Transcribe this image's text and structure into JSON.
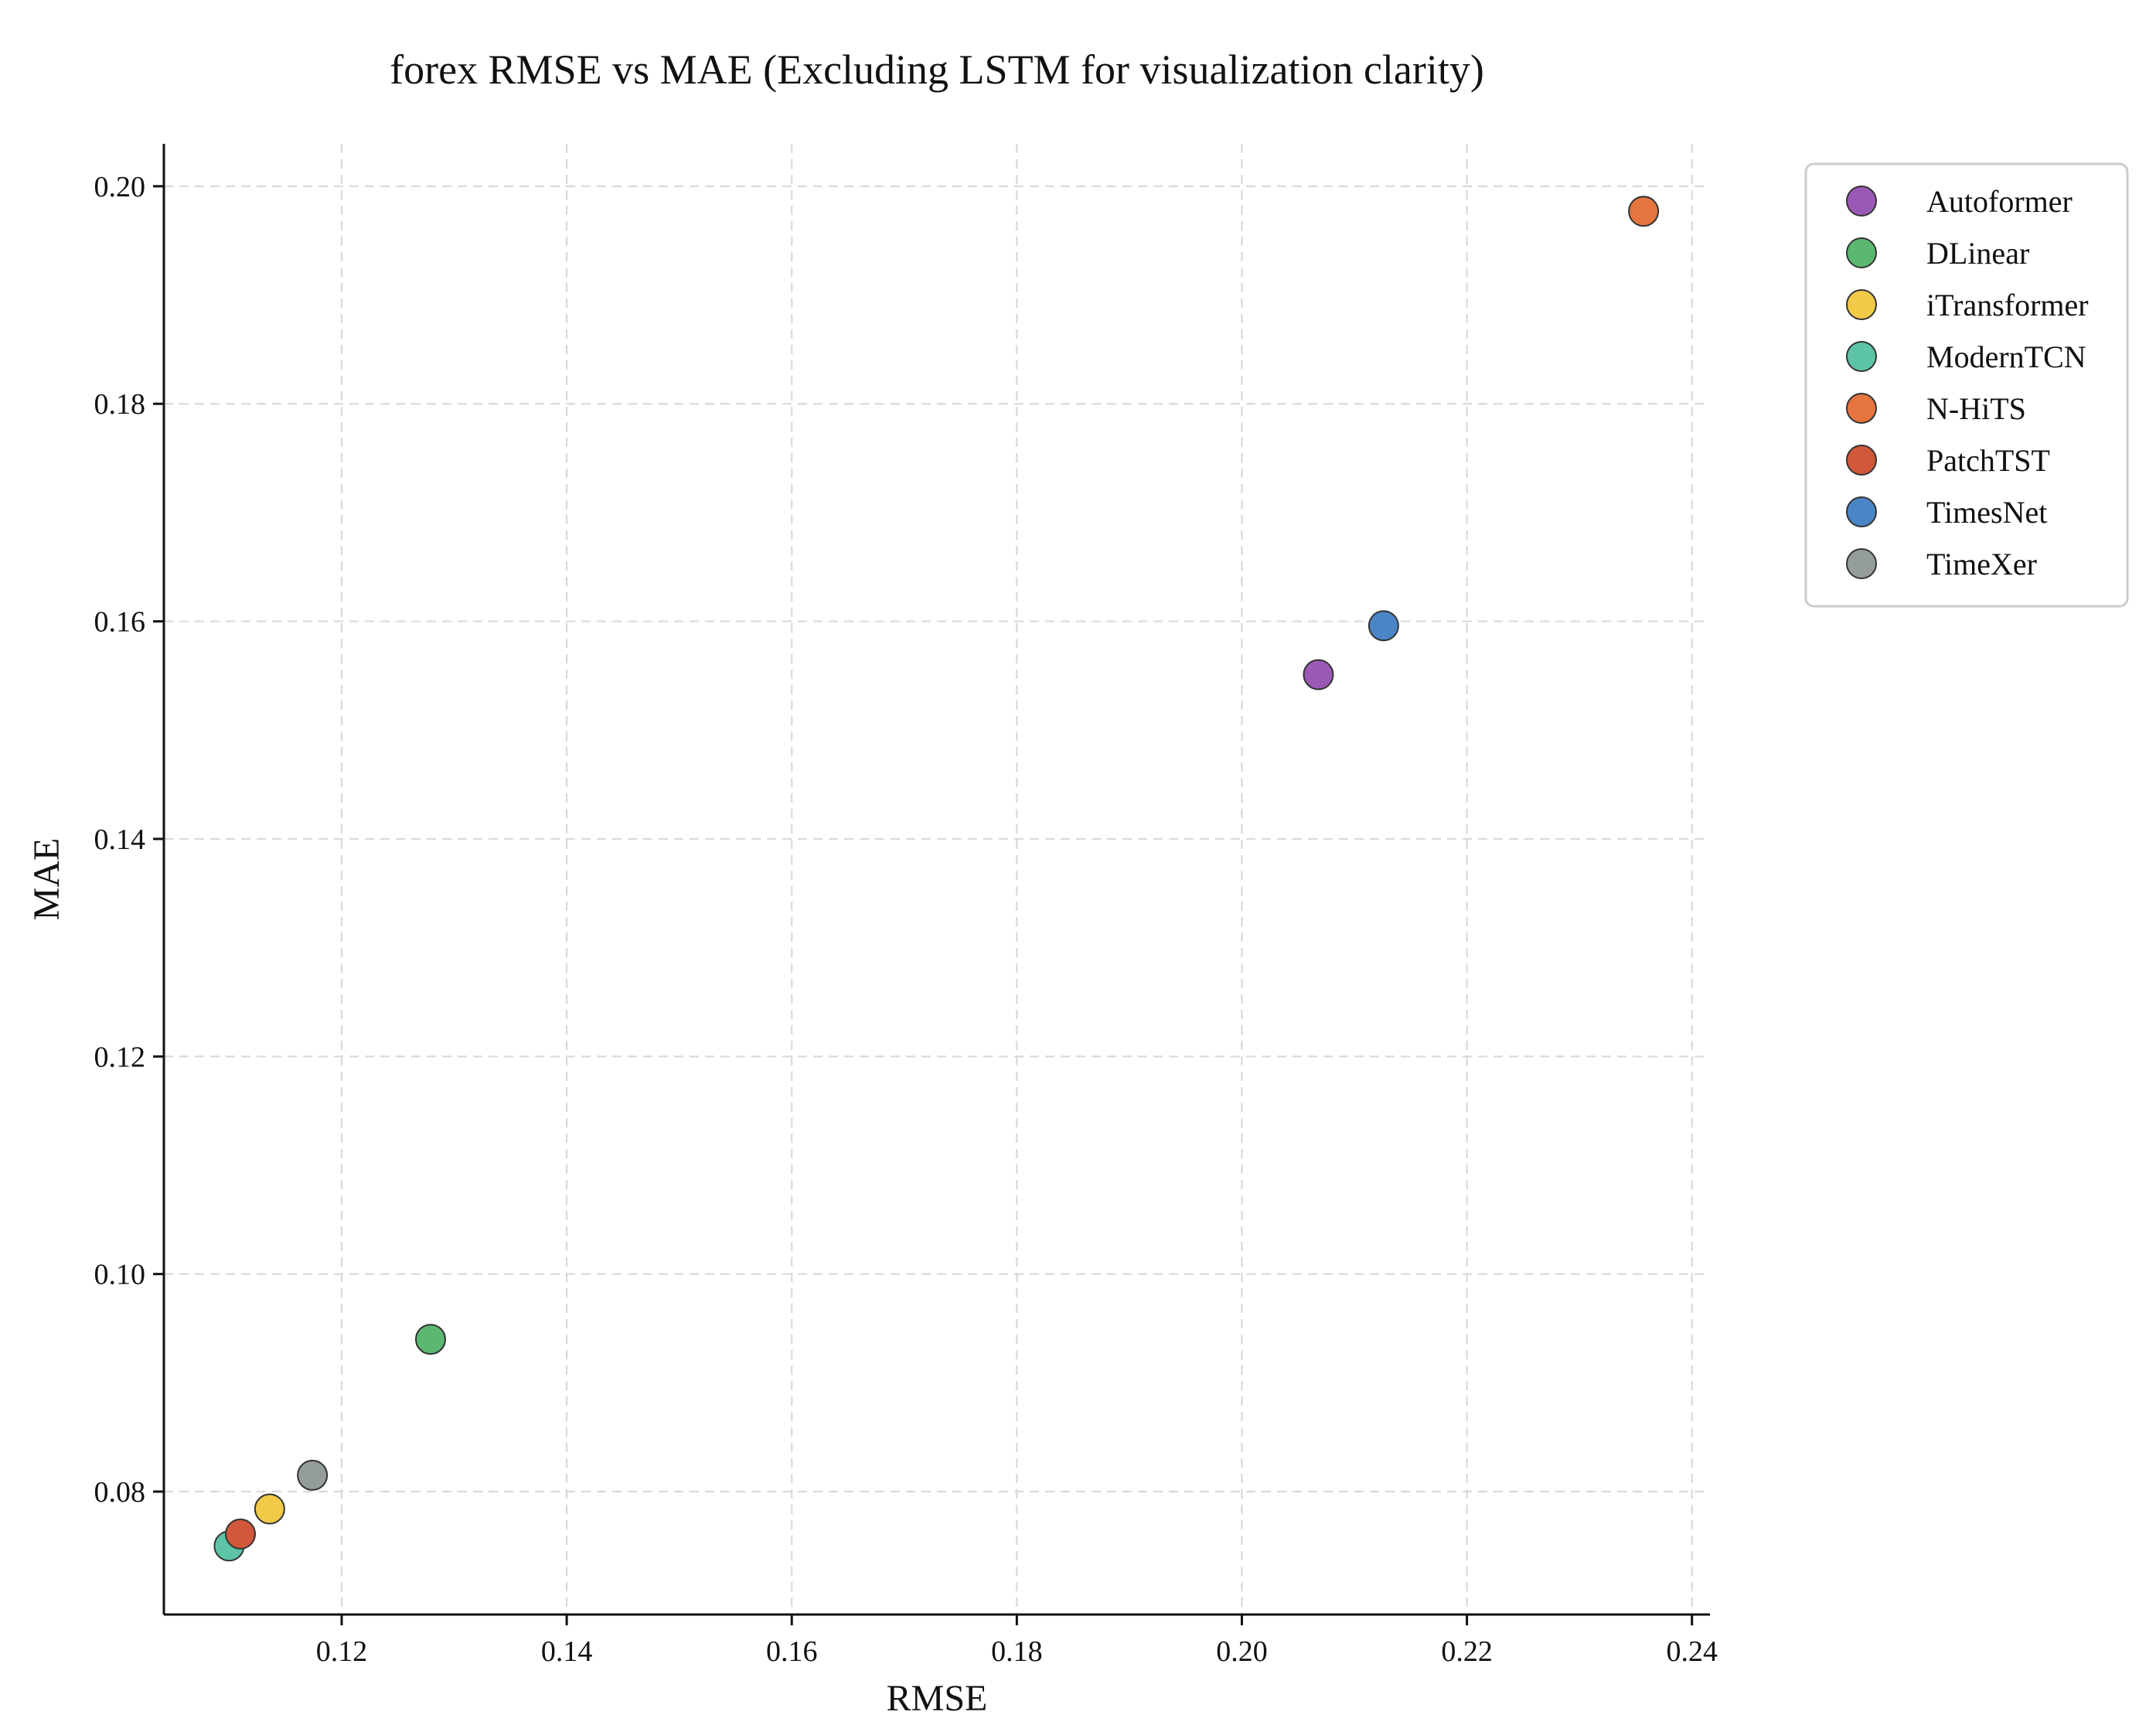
{
  "chart_data": {
    "type": "scatter",
    "title": "forex RMSE vs MAE (Excluding LSTM for visualization clarity)",
    "xlabel": "RMSE",
    "ylabel": "MAE",
    "xlim": [
      0.1042,
      0.2416
    ],
    "ylim": [
      0.0687,
      0.2039
    ],
    "xticks": [
      0.12,
      0.14,
      0.16,
      0.18,
      0.2,
      0.22,
      0.24
    ],
    "yticks": [
      0.08,
      0.1,
      0.12,
      0.14,
      0.16,
      0.18,
      0.2
    ],
    "xtick_labels": [
      "0.12",
      "0.14",
      "0.16",
      "0.18",
      "0.20",
      "0.22",
      "0.24"
    ],
    "ytick_labels": [
      "0.08",
      "0.10",
      "0.12",
      "0.14",
      "0.16",
      "0.18",
      "0.20"
    ],
    "grid": true,
    "legend_position": "outside-top-right",
    "series": [
      {
        "name": "Autoformer",
        "color": "#9b59b6",
        "x": 0.2068,
        "y": 0.1551
      },
      {
        "name": "DLinear",
        "color": "#5bb870",
        "x": 0.1279,
        "y": 0.094
      },
      {
        "name": "iTransformer",
        "color": "#f2ca48",
        "x": 0.1136,
        "y": 0.0784
      },
      {
        "name": "ModernTCN",
        "color": "#5ec4a6",
        "x": 0.11,
        "y": 0.075
      },
      {
        "name": "N-HiTS",
        "color": "#e6743f",
        "x": 0.2357,
        "y": 0.1977
      },
      {
        "name": "PatchTST",
        "color": "#d1583b",
        "x": 0.111,
        "y": 0.0761
      },
      {
        "name": "TimesNet",
        "color": "#4a86c6",
        "x": 0.2126,
        "y": 0.1596
      },
      {
        "name": "TimeXer",
        "color": "#949d9b",
        "x": 0.1174,
        "y": 0.0815
      }
    ]
  }
}
